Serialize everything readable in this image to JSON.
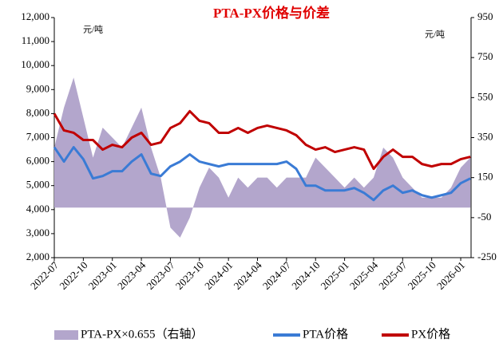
{
  "chart_data": {
    "type": "line",
    "title": "PTA-PX价格与价差",
    "y_unit": "元/吨",
    "y2_unit": "元/吨",
    "x": [
      "2022-07",
      "2022-08",
      "2022-09",
      "2022-10",
      "2022-11",
      "2022-12",
      "2023-01",
      "2023-02",
      "2023-03",
      "2023-04",
      "2023-05",
      "2023-06",
      "2023-07",
      "2023-08",
      "2023-09",
      "2023-10",
      "2023-11",
      "2023-12",
      "2024-01",
      "2024-02",
      "2024-03",
      "2024-04",
      "2024-05",
      "2024-06",
      "2024-07",
      "2024-08",
      "2024-09",
      "2024-10",
      "2024-11",
      "2024-12",
      "2025-01",
      "2025-02",
      "2025-03",
      "2025-04",
      "2025-05",
      "2025-06",
      "2025-07",
      "2025-08",
      "2025-09",
      "2025-10",
      "2025-11",
      "2025-12",
      "2026-01",
      "2026-02"
    ],
    "xticks": [
      "2022-07",
      "2022-10",
      "2023-01",
      "2023-04",
      "2023-07",
      "2023-10",
      "2024-01",
      "2024-04",
      "2024-07",
      "2024-10",
      "2025-01",
      "2025-04",
      "2025-07",
      "2025-10",
      "2026-01"
    ],
    "ylim": [
      2000,
      12000
    ],
    "yticks": [
      {
        "value": 2000,
        "label": "2,000"
      },
      {
        "value": 3000,
        "label": "3,000"
      },
      {
        "value": 4000,
        "label": "4,000"
      },
      {
        "value": 5000,
        "label": "5,000"
      },
      {
        "value": 6000,
        "label": "6,000"
      },
      {
        "value": 7000,
        "label": "7,000"
      },
      {
        "value": 8000,
        "label": "8,000"
      },
      {
        "value": 9000,
        "label": "9,000"
      },
      {
        "value": 10000,
        "label": "10,000"
      },
      {
        "value": 11000,
        "label": "11,000"
      },
      {
        "value": 12000,
        "label": "12,000"
      }
    ],
    "y2lim": [
      -250,
      950
    ],
    "y2ticks": [
      -250,
      -50,
      150,
      350,
      550,
      750,
      950
    ],
    "series": [
      {
        "name": "PTA-PX×0.655（右轴）",
        "type": "area",
        "axis": "y2",
        "color": "#b3a6cc",
        "values": [
          300,
          500,
          650,
          450,
          250,
          400,
          350,
          300,
          400,
          500,
          300,
          150,
          -100,
          -150,
          -50,
          100,
          200,
          150,
          50,
          150,
          100,
          150,
          150,
          100,
          150,
          150,
          150,
          250,
          200,
          150,
          100,
          150,
          100,
          150,
          300,
          250,
          150,
          100,
          50,
          50,
          50,
          100,
          200,
          250
        ]
      },
      {
        "name": "PTA价格",
        "type": "line",
        "color": "#3a7bd5",
        "values": [
          6600,
          6000,
          6600,
          6100,
          5300,
          5400,
          5600,
          5600,
          6000,
          6300,
          5500,
          5400,
          5800,
          6000,
          6300,
          6000,
          5900,
          5800,
          5900,
          5900,
          5900,
          5900,
          5900,
          5900,
          6000,
          5700,
          5000,
          5000,
          4800,
          4800,
          4800,
          4900,
          4700,
          4400,
          4800,
          5000,
          4700,
          4800,
          4600,
          4500,
          4600,
          4700,
          5100,
          5300
        ]
      },
      {
        "name": "PX价格",
        "type": "line",
        "color": "#c00000",
        "values": [
          8000,
          7300,
          7200,
          6900,
          6900,
          6500,
          6700,
          6600,
          7000,
          7200,
          6700,
          6800,
          7400,
          7600,
          8100,
          7700,
          7600,
          7200,
          7200,
          7400,
          7200,
          7400,
          7500,
          7400,
          7300,
          7100,
          6700,
          6500,
          6600,
          6400,
          6500,
          6600,
          6500,
          5700,
          6200,
          6500,
          6200,
          6200,
          5900,
          5800,
          5900,
          5900,
          6100,
          6200
        ]
      }
    ]
  }
}
